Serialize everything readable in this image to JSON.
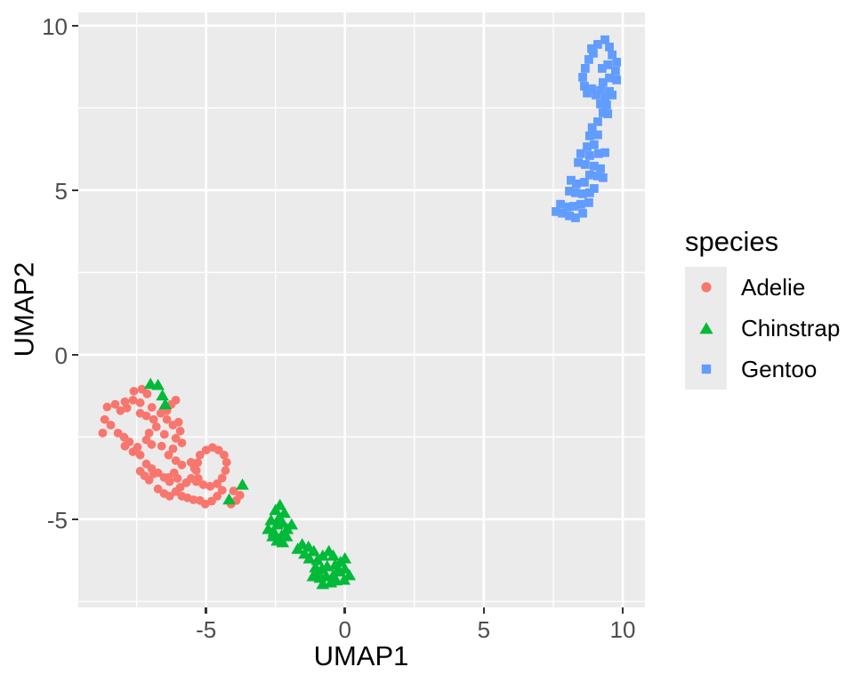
{
  "chart_data": {
    "type": "scatter",
    "title": "",
    "xlabel": "UMAP1",
    "ylabel": "UMAP2",
    "xlim": [
      -9.6,
      10.8
    ],
    "ylim": [
      -7.68,
      10.4
    ],
    "grid": true,
    "legend_position": "right",
    "panel_bg": "#EBEBEB",
    "grid_color": "#FFFFFF",
    "tick_mark_color": "#333333",
    "tick_text_color": "#4D4D4D",
    "x_ticks": [
      {
        "label": "-5",
        "value": -5
      },
      {
        "label": "0",
        "value": 0
      },
      {
        "label": "5",
        "value": 5
      },
      {
        "label": "10",
        "value": 10
      }
    ],
    "y_ticks": [
      {
        "label": "-5",
        "value": -5
      },
      {
        "label": "0",
        "value": 0
      },
      {
        "label": "5",
        "value": 5
      },
      {
        "label": "10",
        "value": 10
      }
    ],
    "x_minor_ticks": [
      -7.5,
      -2.5,
      2.5,
      7.5
    ],
    "y_minor_ticks": [
      -7.5,
      -2.5,
      2.5,
      7.5
    ],
    "legend": {
      "title": "species"
    },
    "series": [
      {
        "name": "Adelie",
        "shape": "circle",
        "color": "#F8766D",
        "points": [
          [
            -7.6,
            -1.11
          ],
          [
            -7.31,
            -1.05
          ],
          [
            -7.12,
            -1.19
          ],
          [
            -7.92,
            -1.43
          ],
          [
            -7.63,
            -1.38
          ],
          [
            -7.37,
            -1.46
          ],
          [
            -8.56,
            -1.59
          ],
          [
            -8.27,
            -1.51
          ],
          [
            -8.08,
            -1.7
          ],
          [
            -8.65,
            -1.97
          ],
          [
            -8.43,
            -2.14
          ],
          [
            -8.72,
            -2.38
          ],
          [
            -8.17,
            -2.38
          ],
          [
            -7.95,
            -2.51
          ],
          [
            -7.76,
            -2.65
          ],
          [
            -7.92,
            -2.78
          ],
          [
            -7.63,
            -2.95
          ],
          [
            -7.47,
            -2.81
          ],
          [
            -7.37,
            -3.05
          ],
          [
            -7.15,
            -2.59
          ],
          [
            -6.96,
            -2.73
          ],
          [
            -7.05,
            -2.38
          ],
          [
            -6.79,
            -2.19
          ],
          [
            -6.89,
            -1.97
          ],
          [
            -7.15,
            -1.86
          ],
          [
            -7.37,
            -1.78
          ],
          [
            -6.63,
            -1.78
          ],
          [
            -6.41,
            -1.7
          ],
          [
            -6.25,
            -1.51
          ],
          [
            -6.09,
            -1.38
          ],
          [
            -6.41,
            -1.97
          ],
          [
            -6.19,
            -2.14
          ],
          [
            -5.99,
            -2.05
          ],
          [
            -5.93,
            -2.32
          ],
          [
            -6.09,
            -2.54
          ],
          [
            -5.87,
            -2.68
          ],
          [
            -6.19,
            -2.86
          ],
          [
            -6.35,
            -3.05
          ],
          [
            -6.09,
            -3.22
          ],
          [
            -5.87,
            -3.35
          ],
          [
            -7.15,
            -3.32
          ],
          [
            -6.96,
            -3.46
          ],
          [
            -6.73,
            -3.59
          ],
          [
            -6.51,
            -3.73
          ],
          [
            -6.31,
            -3.86
          ],
          [
            -6.03,
            -3.76
          ],
          [
            -7.85,
            -1.62
          ],
          [
            -6.95,
            -1.6
          ],
          [
            -6.5,
            -2.42
          ],
          [
            -6.6,
            -2.78
          ],
          [
            -6.89,
            -3.62
          ],
          [
            -6.35,
            -3.73
          ],
          [
            -6.15,
            -3.59
          ],
          [
            -5.93,
            -4.03
          ],
          [
            -5.71,
            -3.89
          ],
          [
            -5.54,
            -3.76
          ],
          [
            -5.87,
            -4.3
          ],
          [
            -5.67,
            -4.35
          ],
          [
            -5.45,
            -4.41
          ],
          [
            -5.22,
            -4.43
          ],
          [
            -5.03,
            -4.54
          ],
          [
            -4.8,
            -4.45
          ],
          [
            -4.6,
            -4.3
          ],
          [
            -4.42,
            -4.12
          ],
          [
            -5.35,
            -3.86
          ],
          [
            -6.31,
            -4.3
          ],
          [
            -6.51,
            -4.22
          ],
          [
            -6.73,
            -4.08
          ],
          [
            -7.05,
            -3.81
          ],
          [
            -7.21,
            -3.68
          ],
          [
            -7.37,
            -3.54
          ],
          [
            -6.09,
            -4.16
          ],
          [
            -5.22,
            -3.05
          ],
          [
            -5.0,
            -2.9
          ],
          [
            -4.77,
            -2.82
          ],
          [
            -4.55,
            -2.9
          ],
          [
            -4.35,
            -3.05
          ],
          [
            -4.26,
            -3.27
          ],
          [
            -4.3,
            -3.52
          ],
          [
            -4.42,
            -3.75
          ],
          [
            -4.6,
            -3.92
          ],
          [
            -4.85,
            -4.0
          ],
          [
            -5.1,
            -3.95
          ],
          [
            -5.28,
            -3.76
          ],
          [
            -5.35,
            -3.52
          ],
          [
            -5.3,
            -3.28
          ],
          [
            -5.54,
            -3.27
          ],
          [
            -5.42,
            -3.45
          ],
          [
            -4.1,
            -4.54
          ],
          [
            -3.91,
            -4.43
          ],
          [
            -3.78,
            -4.27
          ],
          [
            -4.01,
            -4.14
          ]
        ]
      },
      {
        "name": "Chinstrap",
        "shape": "triangle",
        "color": "#00BA38",
        "points": [
          [
            -7.0,
            -0.89
          ],
          [
            -6.73,
            -0.92
          ],
          [
            -6.57,
            -1.24
          ],
          [
            -6.47,
            -1.51
          ],
          [
            -4.17,
            -4.4
          ],
          [
            -3.69,
            -3.95
          ],
          [
            -2.34,
            -4.57
          ],
          [
            -2.18,
            -4.81
          ],
          [
            -2.66,
            -5.03
          ],
          [
            -2.44,
            -5.16
          ],
          [
            -2.24,
            -5.11
          ],
          [
            -2.76,
            -5.3
          ],
          [
            -2.56,
            -5.38
          ],
          [
            -2.28,
            -5.49
          ],
          [
            -2.08,
            -5.3
          ],
          [
            -1.92,
            -5.16
          ],
          [
            -2.44,
            -5.65
          ],
          [
            -2.24,
            -5.7
          ],
          [
            -2.5,
            -4.72
          ],
          [
            -2.6,
            -5.52
          ],
          [
            -2.1,
            -5.52
          ],
          [
            -2.37,
            -4.95
          ],
          [
            -1.54,
            -5.76
          ],
          [
            -1.31,
            -5.84
          ],
          [
            -1.12,
            -5.97
          ],
          [
            -1.28,
            -6.19
          ],
          [
            -0.99,
            -6.24
          ],
          [
            -0.8,
            -6.11
          ],
          [
            -0.58,
            -5.97
          ],
          [
            -0.42,
            -6.11
          ],
          [
            -1.7,
            -5.9
          ],
          [
            -1.45,
            -6.05
          ],
          [
            -1.06,
            -6.46
          ],
          [
            -0.83,
            -6.51
          ],
          [
            -0.64,
            -6.43
          ],
          [
            -0.35,
            -6.38
          ],
          [
            -0.16,
            -6.3
          ],
          [
            0.0,
            -6.19
          ],
          [
            -1.15,
            -6.73
          ],
          [
            -0.9,
            -6.78
          ],
          [
            -0.67,
            -6.73
          ],
          [
            -0.42,
            -6.7
          ],
          [
            -0.19,
            -6.59
          ],
          [
            0.0,
            -6.51
          ],
          [
            -0.95,
            -6.62
          ],
          [
            -0.25,
            -6.55
          ],
          [
            -0.8,
            -6.97
          ],
          [
            -0.51,
            -6.92
          ],
          [
            -0.32,
            -6.86
          ],
          [
            -0.03,
            -6.84
          ],
          [
            0.16,
            -6.7
          ]
        ]
      },
      {
        "name": "Gentoo",
        "shape": "square",
        "color": "#619CFF",
        "points": [
          [
            9.36,
            9.57
          ],
          [
            9.1,
            9.43
          ],
          [
            9.52,
            9.35
          ],
          [
            8.94,
            9.16
          ],
          [
            8.88,
            9.3
          ],
          [
            9.62,
            9.11
          ],
          [
            8.78,
            8.97
          ],
          [
            9.78,
            8.89
          ],
          [
            9.46,
            8.81
          ],
          [
            8.65,
            8.7
          ],
          [
            9.74,
            8.62
          ],
          [
            9.26,
            8.7
          ],
          [
            8.56,
            8.43
          ],
          [
            9.52,
            8.41
          ],
          [
            9.78,
            8.35
          ],
          [
            9.29,
            8.27
          ],
          [
            8.62,
            8.16
          ],
          [
            8.88,
            8.08
          ],
          [
            9.2,
            8.03
          ],
          [
            9.52,
            8.0
          ],
          [
            8.72,
            7.95
          ],
          [
            9.04,
            7.89
          ],
          [
            9.36,
            7.81
          ],
          [
            9.62,
            7.89
          ],
          [
            9.2,
            7.62
          ],
          [
            9.42,
            7.59
          ],
          [
            9.29,
            7.35
          ],
          [
            9.46,
            7.32
          ],
          [
            9.1,
            7.08
          ],
          [
            8.9,
            6.9
          ],
          [
            8.81,
            6.65
          ],
          [
            9.1,
            6.68
          ],
          [
            8.72,
            6.32
          ],
          [
            8.97,
            6.38
          ],
          [
            8.49,
            6.11
          ],
          [
            8.81,
            6.05
          ],
          [
            9.13,
            6.11
          ],
          [
            9.36,
            6.14
          ],
          [
            8.4,
            5.84
          ],
          [
            8.65,
            5.78
          ],
          [
            8.97,
            5.73
          ],
          [
            9.2,
            5.65
          ],
          [
            8.81,
            5.46
          ],
          [
            9.1,
            5.43
          ],
          [
            9.29,
            5.38
          ],
          [
            8.14,
            5.3
          ],
          [
            8.33,
            5.19
          ],
          [
            8.62,
            5.24
          ],
          [
            8.08,
            4.97
          ],
          [
            8.3,
            4.92
          ],
          [
            8.56,
            4.89
          ],
          [
            8.81,
            4.92
          ],
          [
            8.97,
            5.05
          ],
          [
            7.76,
            4.57
          ],
          [
            8.01,
            4.49
          ],
          [
            8.24,
            4.51
          ],
          [
            8.49,
            4.57
          ],
          [
            8.78,
            4.62
          ],
          [
            7.6,
            4.35
          ],
          [
            7.82,
            4.3
          ],
          [
            8.08,
            4.22
          ],
          [
            8.3,
            4.16
          ],
          [
            8.56,
            4.3
          ]
        ]
      }
    ]
  }
}
